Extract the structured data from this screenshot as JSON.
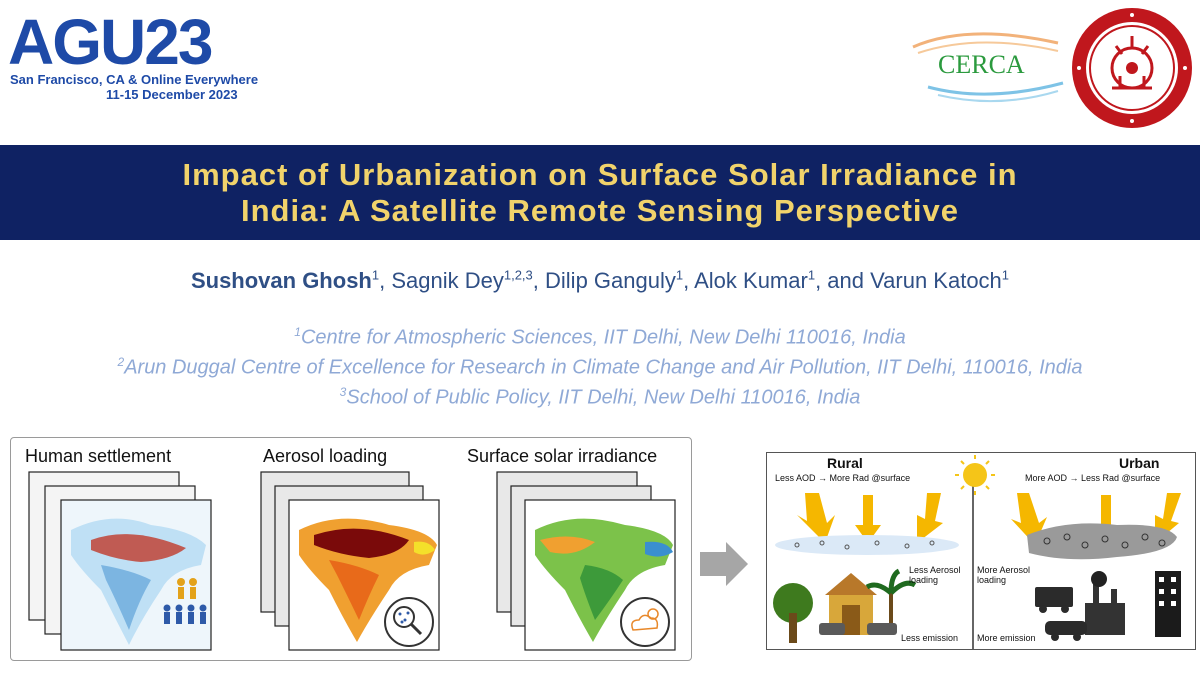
{
  "agu": {
    "logo_text": "AGU23",
    "location": "San Francisco, CA & Online Everywhere",
    "dates": "11-15 December 2023"
  },
  "cerca": {
    "logo_text": "CERCA"
  },
  "iit": {
    "seal_name": "iit-delhi-seal"
  },
  "title": {
    "line1": "Impact of Urbanization on Surface Solar Irradiance in",
    "line2": "India: A Satellite Remote Sensing Perspective"
  },
  "authors": [
    {
      "name": "Sushovan Ghosh",
      "sup": "1",
      "bold": true,
      "sep": ", "
    },
    {
      "name": "Sagnik Dey",
      "sup": "1,2,3",
      "bold": false,
      "sep": ", "
    },
    {
      "name": "Dilip Ganguly",
      "sup": "1",
      "bold": false,
      "sep": ", "
    },
    {
      "name": "Alok Kumar",
      "sup": "1",
      "bold": false,
      "sep": ", and "
    },
    {
      "name": "Varun Katoch",
      "sup": "1",
      "bold": false,
      "sep": ""
    }
  ],
  "affiliations": [
    {
      "sup": "1",
      "text": "Centre for Atmospheric Sciences, IIT Delhi, New Delhi 110016, India"
    },
    {
      "sup": "2",
      "text": "Arun Duggal Centre of Excellence for Research in Climate Change and Air Pollution, IIT Delhi, 110016, India"
    },
    {
      "sup": "3",
      "text": "School of Public Policy, IIT Delhi, New Delhi 110016, India"
    }
  ],
  "left_panel": {
    "label_settlement": "Human settlement",
    "label_aerosol": "Aerosol  loading",
    "label_ssi": "Surface solar irradiance"
  },
  "right_panel": {
    "rural": "Rural",
    "urban": "Urban",
    "rural_sub": "Less AOD → More Rad @surface",
    "urban_sub": "More AOD → Less Rad @surface",
    "less_aerosol": "Less Aerosol loading",
    "more_aerosol": "More Aerosol loading",
    "less_emission": "Less emission",
    "more_emission": "More emission"
  },
  "colors": {
    "title_band": "#0f2263",
    "title_text": "#f1d36b",
    "author_text": "#2f4f85",
    "affil_text": "#8fa9d6",
    "agu_blue": "#1e4aa7",
    "iit_red": "#c0171d"
  }
}
